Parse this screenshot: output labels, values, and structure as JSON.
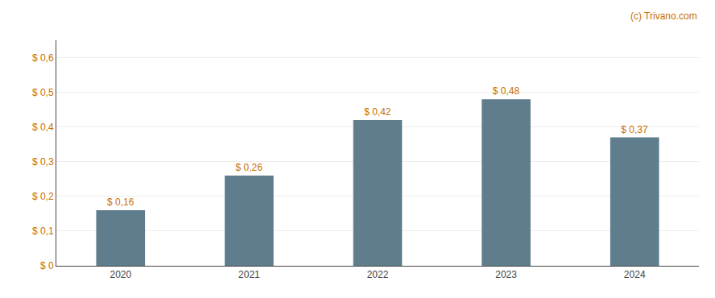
{
  "chart_data": {
    "type": "bar",
    "categories": [
      "2020",
      "2021",
      "2022",
      "2023",
      "2024"
    ],
    "values": [
      0.16,
      0.26,
      0.42,
      0.48,
      0.37
    ],
    "value_labels": [
      "$ 0,16",
      "$ 0,26",
      "$ 0,42",
      "$ 0,48",
      "$ 0,37"
    ],
    "data_labels": true,
    "color": "#5f7d8c",
    "ylim": [
      0,
      0.65
    ],
    "yticks": [
      {
        "value": 0,
        "label": "$ 0"
      },
      {
        "value": 0.1,
        "label": "$ 0,1"
      },
      {
        "value": 0.2,
        "label": "$ 0,2"
      },
      {
        "value": 0.3,
        "label": "$ 0,3"
      },
      {
        "value": 0.4,
        "label": "$ 0,4"
      },
      {
        "value": 0.5,
        "label": "$ 0,5"
      },
      {
        "value": 0.6,
        "label": "$ 0,6"
      }
    ],
    "grid": true,
    "annotations": [
      "(c) Trivano.com"
    ]
  }
}
